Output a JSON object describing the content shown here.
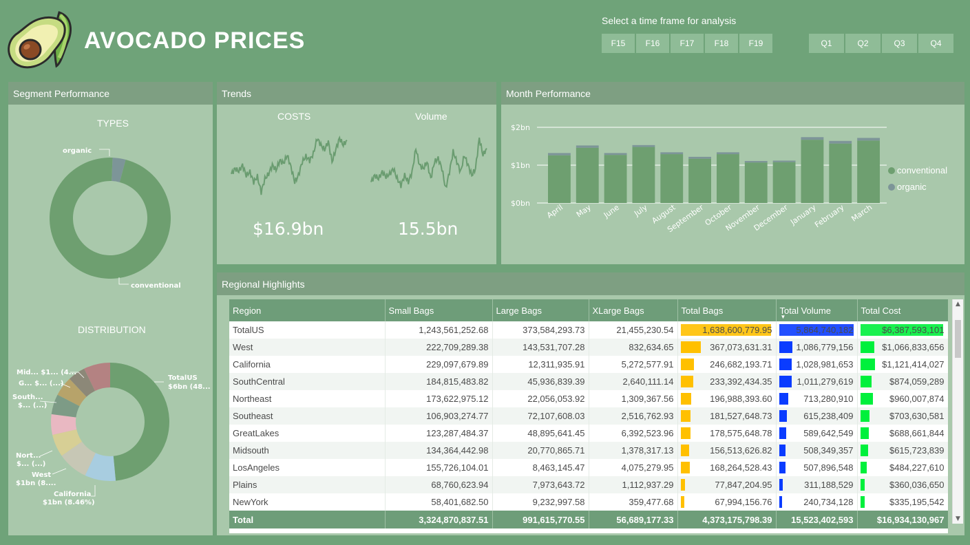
{
  "header": {
    "title": "AVOCADO PRICES",
    "timeframe_label": "Select a time frame for analysis",
    "fiscal_years": [
      "F15",
      "F16",
      "F17",
      "F18",
      "F19"
    ],
    "quarters": [
      "Q1",
      "Q2",
      "Q3",
      "Q4"
    ]
  },
  "segment": {
    "header": "Segment Performance",
    "types_title": "TYPES",
    "types_labels": {
      "organic": "organic",
      "conventional": "conventional"
    },
    "distribution_title": "DISTRIBUTION",
    "distribution_labels": {
      "totalus_1": "TotalUS",
      "totalus_2": "$6bn (48...",
      "mid": "Mid... $1... (4...",
      "g": "G... $... (...)",
      "south_1": "South...",
      "south_2": "$... (...)",
      "nort_1": "Nort...",
      "nort_2": "$... (...)",
      "west_1": "West",
      "west_2": "$1bn (8....",
      "california_1": "California",
      "california_2": "$1bn (8.46%)"
    }
  },
  "trends": {
    "header": "Trends",
    "costs_title": "COSTS",
    "volume_title": "Volume",
    "costs_value": "$16.9bn",
    "volume_value": "15.5bn"
  },
  "month": {
    "header": "Month Performance",
    "legend": [
      "conventional",
      "organic"
    ]
  },
  "regional": {
    "header": "Regional Highlights",
    "columns": [
      "Region",
      "Small Bags",
      "Large Bags",
      "XLarge Bags",
      "Total Bags",
      "Total Volume",
      "Total Cost"
    ],
    "rows": [
      {
        "region": "TotalUS",
        "small": "1,243,561,252.68",
        "large": "373,584,293.73",
        "xlarge": "21,455,230.54",
        "total_bags": "1,638,600,779.95",
        "total_volume": "5,864,740,182",
        "total_cost": "$6,387,593,101"
      },
      {
        "region": "West",
        "small": "222,709,289.38",
        "large": "143,531,707.28",
        "xlarge": "832,634.65",
        "total_bags": "367,073,631.31",
        "total_volume": "1,086,779,156",
        "total_cost": "$1,066,833,656"
      },
      {
        "region": "California",
        "small": "229,097,679.89",
        "large": "12,311,935.91",
        "xlarge": "5,272,577.91",
        "total_bags": "246,682,193.71",
        "total_volume": "1,028,981,653",
        "total_cost": "$1,121,414,027"
      },
      {
        "region": "SouthCentral",
        "small": "184,815,483.82",
        "large": "45,936,839.39",
        "xlarge": "2,640,111.14",
        "total_bags": "233,392,434.35",
        "total_volume": "1,011,279,619",
        "total_cost": "$874,059,289"
      },
      {
        "region": "Northeast",
        "small": "173,622,975.12",
        "large": "22,056,053.92",
        "xlarge": "1,309,367.56",
        "total_bags": "196,988,393.60",
        "total_volume": "713,280,910",
        "total_cost": "$960,007,874"
      },
      {
        "region": "Southeast",
        "small": "106,903,274.77",
        "large": "72,107,608.03",
        "xlarge": "2,516,762.93",
        "total_bags": "181,527,648.73",
        "total_volume": "615,238,409",
        "total_cost": "$703,630,581"
      },
      {
        "region": "GreatLakes",
        "small": "123,287,484.37",
        "large": "48,895,641.45",
        "xlarge": "6,392,523.96",
        "total_bags": "178,575,648.78",
        "total_volume": "589,642,549",
        "total_cost": "$688,661,844"
      },
      {
        "region": "Midsouth",
        "small": "134,364,442.98",
        "large": "20,770,865.71",
        "xlarge": "1,378,317.13",
        "total_bags": "156,513,626.82",
        "total_volume": "508,349,357",
        "total_cost": "$615,723,839"
      },
      {
        "region": "LosAngeles",
        "small": "155,726,104.01",
        "large": "8,463,145.47",
        "xlarge": "4,075,279.95",
        "total_bags": "168,264,528.43",
        "total_volume": "507,896,548",
        "total_cost": "$484,227,610"
      },
      {
        "region": "Plains",
        "small": "68,760,623.94",
        "large": "7,973,643.72",
        "xlarge": "1,112,937.29",
        "total_bags": "77,847,204.95",
        "total_volume": "311,188,529",
        "total_cost": "$360,036,650"
      },
      {
        "region": "NewYork",
        "small": "58,401,682.50",
        "large": "9,232,997.58",
        "xlarge": "359,477.68",
        "total_bags": "67,994,156.76",
        "total_volume": "240,734,128",
        "total_cost": "$335,195,542"
      }
    ],
    "total": {
      "region": "Total",
      "small": "3,324,870,837.51",
      "large": "991,615,770.55",
      "xlarge": "56,689,177.33",
      "total_bags": "4,373,175,798.39",
      "total_volume": "15,523,402,593",
      "total_cost": "$16,934,130,967"
    },
    "bar_colors": {
      "total_bags": "#ffc000",
      "total_volume": "#0a3cff",
      "total_cost": "#00f03c"
    },
    "bar_ratios": {
      "total_bags": [
        1.0,
        0.224,
        0.151,
        0.142,
        0.12,
        0.111,
        0.109,
        0.096,
        0.103,
        0.048,
        0.041
      ],
      "total_volume": [
        1.0,
        0.185,
        0.175,
        0.172,
        0.122,
        0.105,
        0.101,
        0.087,
        0.087,
        0.053,
        0.041
      ],
      "total_cost": [
        1.0,
        0.167,
        0.176,
        0.137,
        0.15,
        0.11,
        0.108,
        0.096,
        0.076,
        0.056,
        0.052
      ]
    }
  },
  "colors": {
    "background": "#6fa379",
    "panel": "#a9c8ab",
    "panel_header": "#7e9f82",
    "conventional": "#6e9f70",
    "organic": "#7d9598"
  },
  "chart_data": [
    {
      "type": "pie",
      "title": "TYPES",
      "categories": [
        "conventional",
        "organic"
      ],
      "values": [
        96.5,
        3.5
      ]
    },
    {
      "type": "pie",
      "title": "DISTRIBUTION",
      "categories": [
        "TotalUS",
        "California",
        "West",
        "Northeast",
        "Southeast",
        "SouthCentral",
        "GreatLakes",
        "Midsouth",
        "Other"
      ],
      "values": [
        48.5,
        8.46,
        8.3,
        6.2,
        5.6,
        5.5,
        5.4,
        4.8,
        7.24
      ],
      "colors": [
        "#6e9f70",
        "#a8cde0",
        "#c7c7b5",
        "#d7cf95",
        "#e9b8c2",
        "#7d9b86",
        "#b7a36a",
        "#8c8878",
        "#b48282"
      ]
    },
    {
      "type": "line",
      "title": "COSTS",
      "values": [
        0.42,
        0.5,
        0.46,
        0.55,
        0.4,
        0.45,
        0.3,
        0.38,
        0.15,
        0.35,
        0.42,
        0.55,
        0.48,
        0.62,
        0.58,
        0.7,
        0.52,
        0.3,
        0.4,
        0.6,
        0.68,
        0.62,
        0.72,
        0.95,
        0.85,
        0.78,
        0.9,
        0.6,
        0.78,
        0.95,
        0.85,
        0.92
      ]
    },
    {
      "type": "line",
      "title": "Volume",
      "values": [
        0.3,
        0.4,
        0.35,
        0.45,
        0.38,
        0.42,
        0.5,
        0.35,
        0.25,
        0.4,
        0.3,
        0.45,
        0.8,
        0.55,
        0.5,
        0.6,
        0.35,
        0.6,
        0.65,
        0.5,
        0.2,
        0.45,
        0.75,
        0.6,
        0.45,
        0.7,
        0.55,
        0.4,
        0.5,
        0.95,
        0.7,
        0.8
      ]
    },
    {
      "type": "bar",
      "categories": [
        "April",
        "May",
        "June",
        "July",
        "August",
        "September",
        "October",
        "November",
        "December",
        "January",
        "February",
        "March"
      ],
      "series": [
        {
          "name": "conventional",
          "values": [
            1.26,
            1.46,
            1.27,
            1.48,
            1.29,
            1.17,
            1.29,
            1.07,
            1.08,
            1.67,
            1.57,
            1.65
          ]
        },
        {
          "name": "organic",
          "values": [
            0.06,
            0.06,
            0.05,
            0.05,
            0.05,
            0.05,
            0.05,
            0.04,
            0.04,
            0.07,
            0.07,
            0.07
          ]
        }
      ],
      "yticks": [
        "$0bn",
        "$1bn",
        "$2bn"
      ],
      "ylim": [
        0,
        2
      ],
      "grid": true,
      "legend": "right"
    }
  ]
}
